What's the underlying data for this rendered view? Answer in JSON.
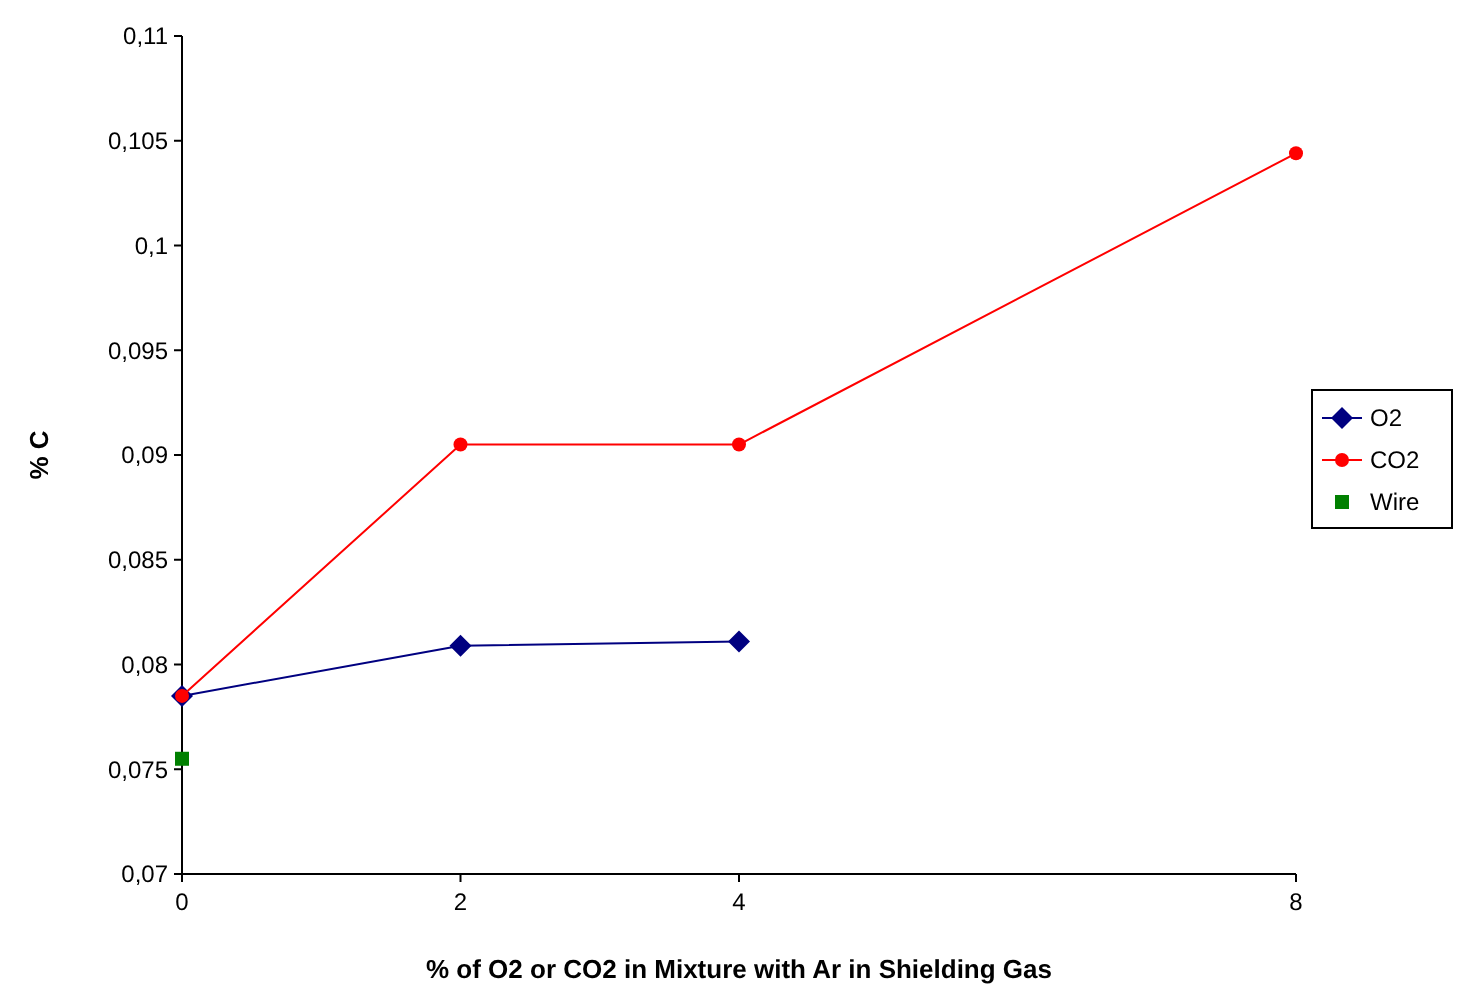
{
  "chart_data": {
    "type": "line",
    "xlabel": "% of O2 or CO2 in Mixture with Ar in Shielding Gas",
    "ylabel": "% C",
    "xlim": [
      0,
      8
    ],
    "xticks": [
      0,
      2,
      4,
      8
    ],
    "ylim": [
      0.07,
      0.11
    ],
    "yticks": [
      {
        "value": 0.07,
        "label": "0,07"
      },
      {
        "value": 0.075,
        "label": "0,075"
      },
      {
        "value": 0.08,
        "label": "0,08"
      },
      {
        "value": 0.085,
        "label": "0,085"
      },
      {
        "value": 0.09,
        "label": "0,09"
      },
      {
        "value": 0.095,
        "label": "0,095"
      },
      {
        "value": 0.1,
        "label": "0,1"
      },
      {
        "value": 0.105,
        "label": "0,105"
      },
      {
        "value": 0.11,
        "label": "0,11"
      }
    ],
    "grid": false,
    "legend": "right",
    "series": [
      {
        "name": "O2",
        "color": "#000080",
        "marker": "diamond",
        "x": [
          0,
          2,
          4
        ],
        "values": [
          0.0785,
          0.0809,
          0.0811
        ]
      },
      {
        "name": "CO2",
        "color": "#ff0000",
        "marker": "circle",
        "x": [
          0,
          2,
          4,
          8
        ],
        "values": [
          0.0785,
          0.0905,
          0.0905,
          0.1044
        ]
      },
      {
        "name": "Wire",
        "type": "scatter",
        "color": "#008000",
        "marker": "square",
        "x": [
          0
        ],
        "values": [
          0.0755
        ]
      }
    ]
  }
}
